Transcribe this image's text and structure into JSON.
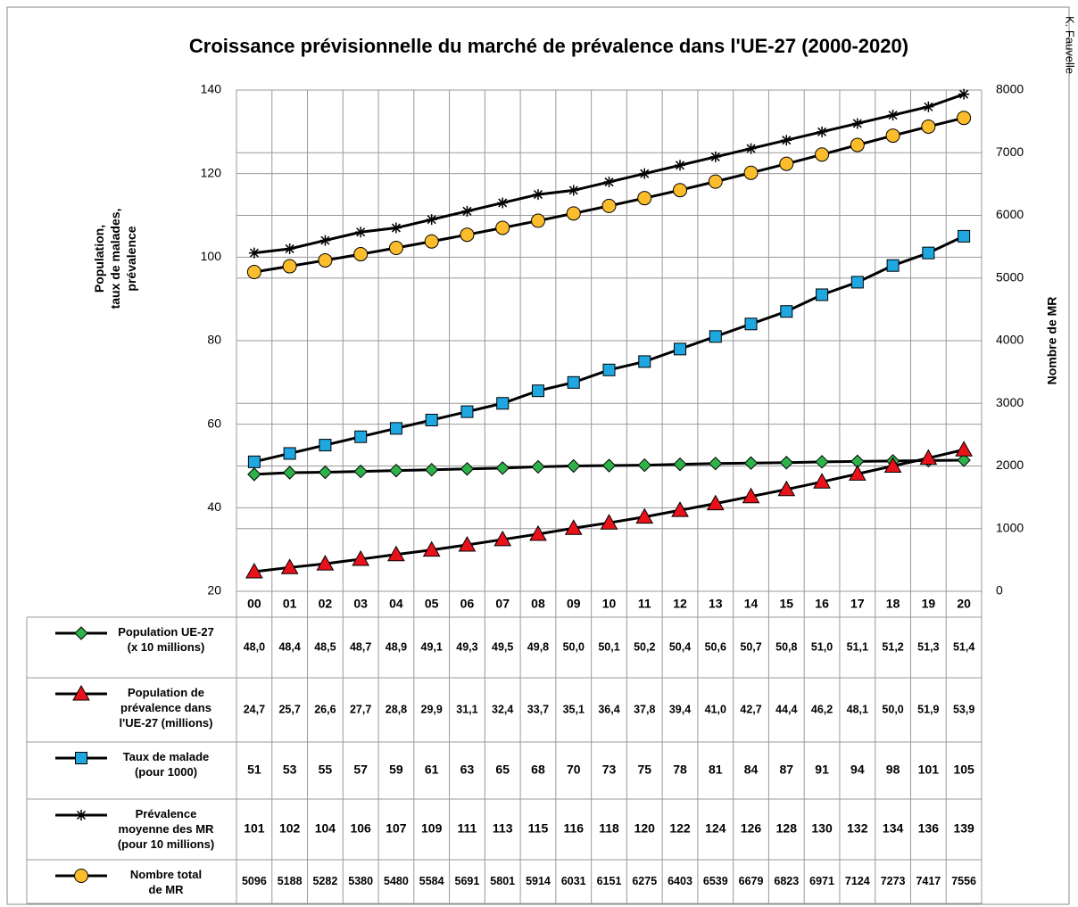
{
  "chart_data": {
    "type": "line",
    "title": "Croissance prévisionnelle du marché de prévalence dans l'UE-27 (2000-2020)",
    "y_label": [
      "Population,",
      "taux de malades,",
      "prévalence"
    ],
    "y2_label": "Nombre de MR",
    "annotation": "K. Fauvelle",
    "categories": [
      "00",
      "01",
      "02",
      "03",
      "04",
      "05",
      "06",
      "07",
      "08",
      "09",
      "10",
      "11",
      "12",
      "13",
      "14",
      "15",
      "16",
      "17",
      "18",
      "19",
      "20"
    ],
    "ylim": [
      20,
      140
    ],
    "yticks": [
      20,
      40,
      60,
      80,
      100,
      120,
      140
    ],
    "y2lim": [
      0,
      8000
    ],
    "y2ticks": [
      0,
      1000,
      2000,
      3000,
      4000,
      5000,
      6000,
      7000,
      8000
    ],
    "grid": true,
    "series": [
      {
        "name": "Population UE-27\n(x 10 millions)",
        "color": "#2db34a",
        "marker": "diamond",
        "values": [
          48.0,
          48.4,
          48.5,
          48.7,
          48.9,
          49.1,
          49.3,
          49.5,
          49.8,
          50.0,
          50.1,
          50.2,
          50.4,
          50.6,
          50.7,
          50.8,
          51.0,
          51.1,
          51.2,
          51.3,
          51.4
        ],
        "value_labels": [
          "48,0",
          "48,4",
          "48,5",
          "48,7",
          "48,9",
          "49,1",
          "49,3",
          "49,5",
          "49,8",
          "50,0",
          "50,1",
          "50,2",
          "50,4",
          "50,6",
          "50,7",
          "50,8",
          "51,0",
          "51,1",
          "51,2",
          "51,3",
          "51,4"
        ]
      },
      {
        "name": "Population de\nprévalence dans\nl'UE-27 (millions)",
        "color": "#e8121b",
        "marker": "triangle",
        "values": [
          24.7,
          25.7,
          26.6,
          27.7,
          28.8,
          29.9,
          31.1,
          32.4,
          33.7,
          35.1,
          36.4,
          37.8,
          39.4,
          41.0,
          42.7,
          44.4,
          46.2,
          48.1,
          50.0,
          51.9,
          53.9
        ],
        "value_labels": [
          "24,7",
          "25,7",
          "26,6",
          "27,7",
          "28,8",
          "29,9",
          "31,1",
          "32,4",
          "33,7",
          "35,1",
          "36,4",
          "37,8",
          "39,4",
          "41,0",
          "42,7",
          "44,4",
          "46,2",
          "48,1",
          "50,0",
          "51,9",
          "53,9"
        ]
      },
      {
        "name": "Taux de malade\n(pour 1000)",
        "color": "#1ea7e1",
        "marker": "square",
        "values": [
          51,
          53,
          55,
          57,
          59,
          61,
          63,
          65,
          68,
          70,
          73,
          75,
          78,
          81,
          84,
          87,
          91,
          94,
          98,
          101,
          105
        ]
      },
      {
        "name": "Prévalence\nmoyenne des MR\n(pour 10 millions)",
        "color": "#000000",
        "marker": "asterisk",
        "values": [
          101,
          102,
          104,
          106,
          107,
          109,
          111,
          113,
          115,
          116,
          118,
          120,
          122,
          124,
          126,
          128,
          130,
          132,
          134,
          136,
          139
        ]
      },
      {
        "name": "Nombre total\nde MR",
        "color": "#fbbd2b",
        "marker": "circle",
        "axis": "y2",
        "values": [
          5096,
          5188,
          5282,
          5380,
          5480,
          5584,
          5691,
          5801,
          5914,
          6031,
          6151,
          6275,
          6403,
          6539,
          6679,
          6823,
          6971,
          7124,
          7273,
          7417,
          7556
        ]
      }
    ]
  }
}
